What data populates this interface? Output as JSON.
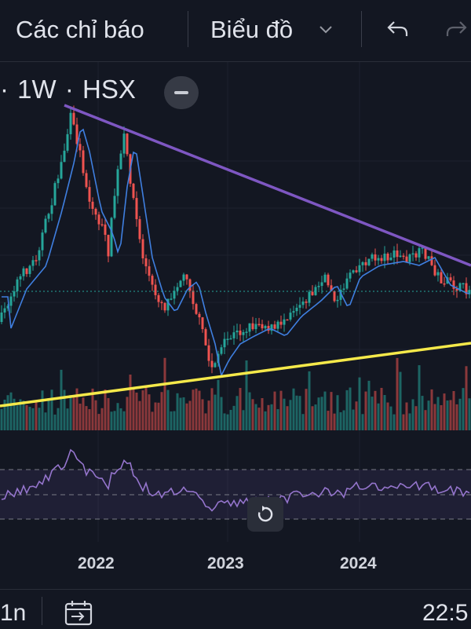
{
  "toolbar": {
    "indicators_label": "Các chỉ báo",
    "chart_type_label": "Biểu đồ"
  },
  "legend": {
    "interval": "1W",
    "exchange": "HSX",
    "separator": "·"
  },
  "x_axis": {
    "labels": [
      "2022",
      "2023",
      "2024"
    ]
  },
  "bottombar": {
    "range_label": "1n",
    "time_label": "22:5"
  },
  "colors": {
    "background": "#131722",
    "up": "#26a69a",
    "down": "#ef5350",
    "ma_line": "#2962ff",
    "resistance_line": "#7e57c2",
    "support_line": "#ffeb3b",
    "rsi_line": "#9575cd"
  }
}
